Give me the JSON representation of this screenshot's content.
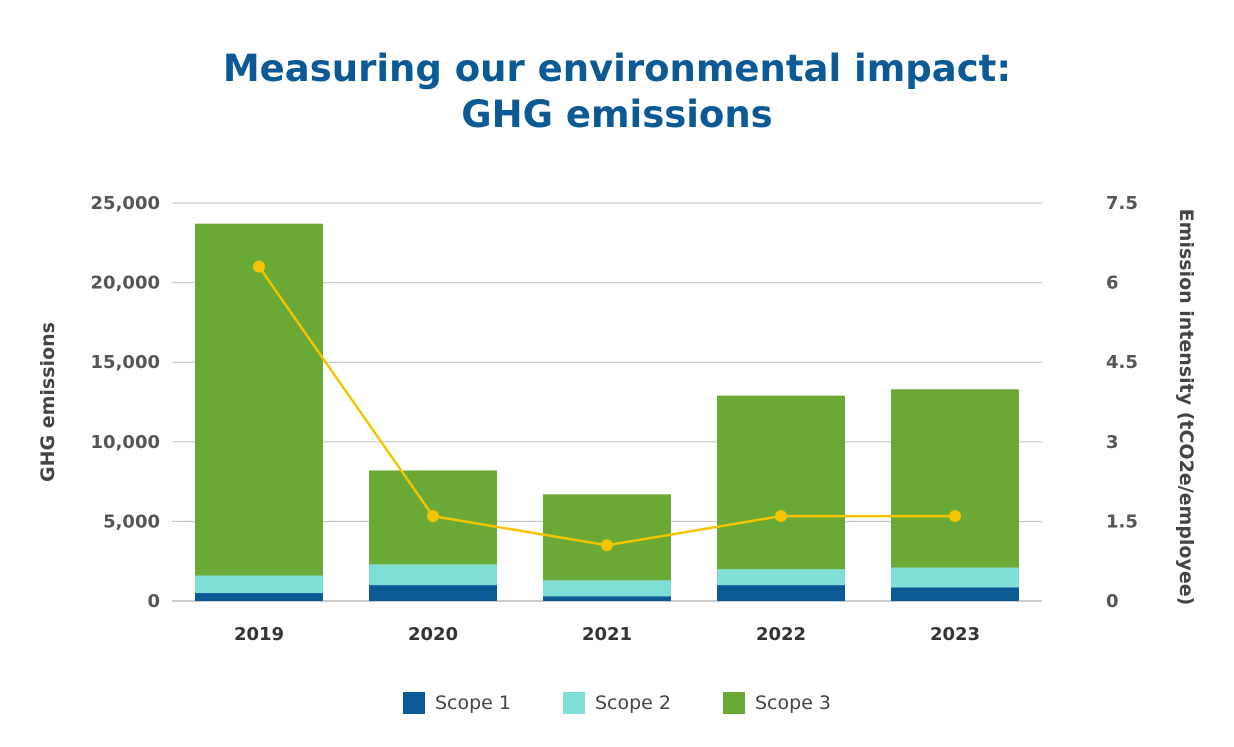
{
  "chart_data": {
    "type": "bar",
    "stacked": true,
    "title": "Measuring our environmental impact:",
    "title_line2": "GHG emissions",
    "categories": [
      "2019",
      "2020",
      "2021",
      "2022",
      "2023"
    ],
    "series": [
      {
        "name": "Scope 1",
        "color": "#0b5a96",
        "values": [
          500,
          1000,
          300,
          1000,
          850
        ]
      },
      {
        "name": "Scope 2",
        "color": "#7fded6",
        "values": [
          1100,
          1300,
          1000,
          1000,
          1250
        ]
      },
      {
        "name": "Scope 3",
        "color": "#6aa936",
        "values": [
          22100,
          5900,
          5400,
          10900,
          11200
        ]
      }
    ],
    "line_series": {
      "color": "#f5c400",
      "values": [
        6.3,
        1.6,
        1.05,
        1.6,
        1.6
      ],
      "axis": "right"
    },
    "ylabel": "GHG emissions",
    "ylabel_right": "Emission intensity (tCO2e/employee)",
    "ylim": [
      0,
      25000
    ],
    "ylim_right": [
      0,
      7.5
    ],
    "yticks": [
      "0",
      "5,000",
      "10,000",
      "15,000",
      "20,000",
      "25,000"
    ],
    "yticks_right": [
      "0",
      "1.5",
      "3",
      "4.5",
      "6",
      "7.5"
    ],
    "grid": true,
    "legend_position": "bottom"
  }
}
